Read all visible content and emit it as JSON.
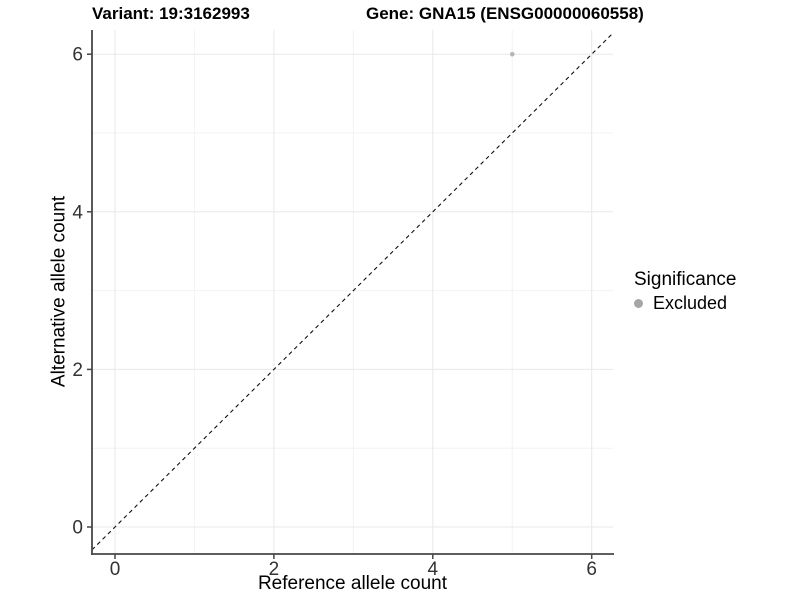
{
  "header": {
    "variant_title": "Variant: 19:3162993",
    "gene_title": "Gene: GNA15 (ENSG00000060558)"
  },
  "chart_data": {
    "type": "scatter",
    "title": "Variant: 19:3162993    Gene: GNA15 (ENSG00000060558)",
    "xlabel": "Reference allele count",
    "ylabel": "Alternative allele count",
    "xlim": [
      -0.29,
      6.27
    ],
    "ylim": [
      -0.32,
      6.3
    ],
    "x_ticks": [
      0,
      2,
      4,
      6
    ],
    "y_ticks": [
      0,
      2,
      4,
      6
    ],
    "x_minor_ticks": [
      1,
      3,
      5
    ],
    "y_minor_ticks": [
      1,
      3,
      5
    ],
    "grid": true,
    "legend_position": "right",
    "series": [
      {
        "name": "Excluded",
        "color": "#b5b5b5",
        "points": [
          {
            "x": 5,
            "y": 6
          }
        ]
      }
    ],
    "reference_line": {
      "equation": "y = x",
      "style": "dashed",
      "color": "#101010"
    }
  },
  "legend": {
    "title": "Significance",
    "items": [
      {
        "label": "Excluded",
        "color": "#a6a6a6",
        "marker": "circle-icon"
      }
    ]
  },
  "colors": {
    "background": "#ffffff",
    "grid_major": "#e8e8e8",
    "grid_minor": "#f3f3f3",
    "axis_line": "#474747",
    "tick_text": "#333333",
    "title_text": "#000000"
  }
}
